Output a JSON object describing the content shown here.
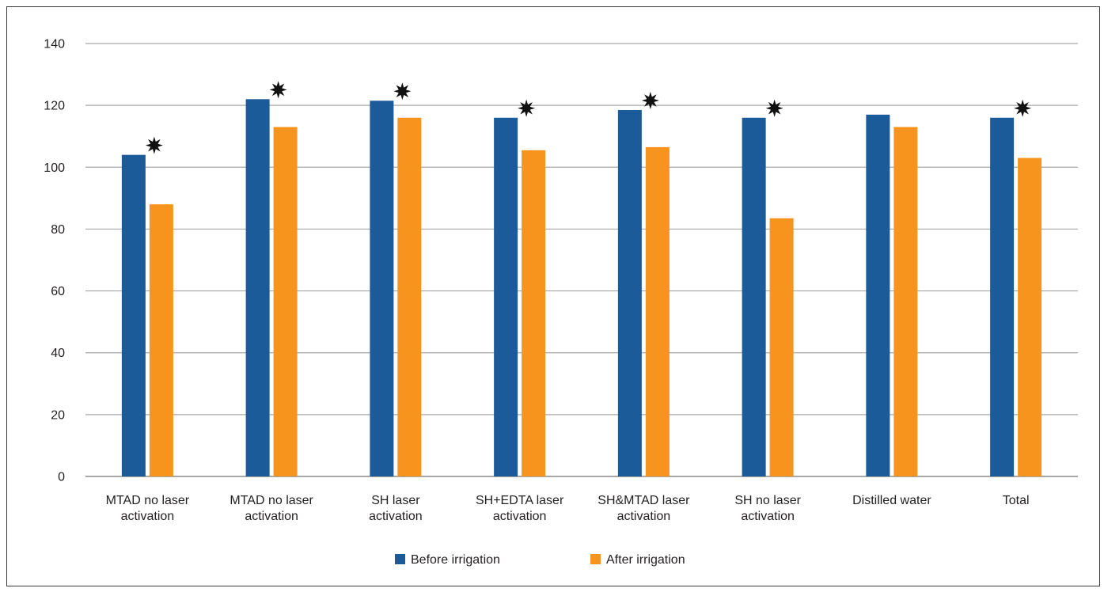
{
  "chart_data": {
    "type": "bar",
    "title": "",
    "xlabel": "",
    "ylabel": "",
    "ylim": [
      0,
      140
    ],
    "yticks": [
      0,
      20,
      40,
      60,
      80,
      100,
      120,
      140
    ],
    "grid": true,
    "legend_position": "bottom-center",
    "categories": [
      [
        "MTAD no laser",
        "activation"
      ],
      [
        "MTAD no laser",
        "activation"
      ],
      [
        "SH laser",
        "activation"
      ],
      [
        "SH+EDTA laser",
        "activation"
      ],
      [
        "SH&MTAD laser",
        "activation"
      ],
      [
        "SH no laser",
        "activation"
      ],
      [
        "Distilled water"
      ],
      [
        "Total"
      ]
    ],
    "series": [
      {
        "name": "Before irrigation",
        "color": "#1b5b9a",
        "values": [
          104,
          122,
          121.5,
          116,
          118.5,
          116,
          117,
          116
        ]
      },
      {
        "name": "After irrigation",
        "color": "#f7941d",
        "values": [
          88,
          113,
          116,
          105.5,
          106.5,
          83.5,
          113,
          103
        ]
      }
    ],
    "significance_markers": [
      true,
      true,
      true,
      true,
      true,
      true,
      false,
      true
    ],
    "marker_icon": "star-burst-icon"
  }
}
